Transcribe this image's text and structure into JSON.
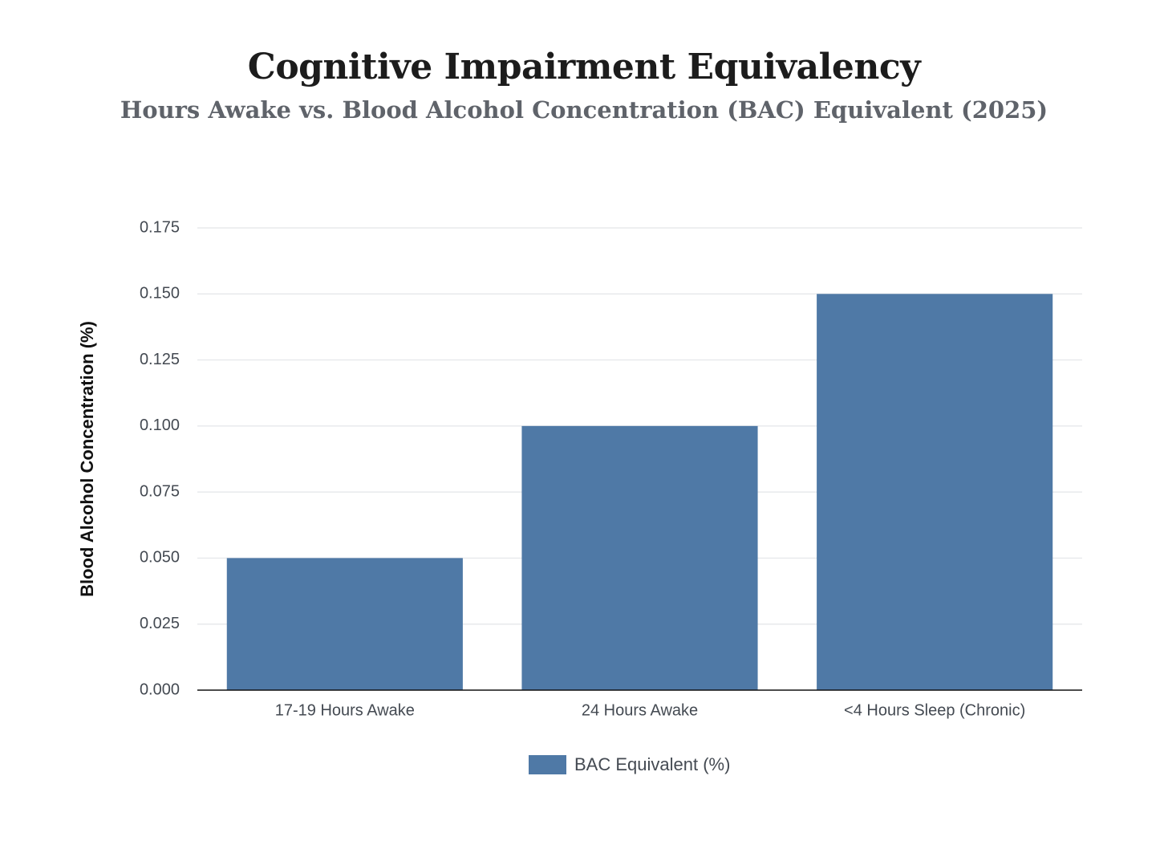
{
  "chart_data": {
    "type": "bar",
    "title": "Cognitive Impairment Equivalency",
    "subtitle": "Hours Awake vs. Blood Alcohol Concentration (BAC) Equivalent (2025)",
    "xlabel": "",
    "ylabel": "Blood Alcohol Concentration (%)",
    "ylim": [
      0,
      0.175
    ],
    "yticks": [
      "0.000",
      "0.025",
      "0.050",
      "0.075",
      "0.100",
      "0.125",
      "0.150",
      "0.175"
    ],
    "categories": [
      "17-19 Hours Awake",
      "24 Hours Awake",
      "<4 Hours Sleep (Chronic)"
    ],
    "series": [
      {
        "name": "BAC Equivalent (%)",
        "values": [
          0.05,
          0.1,
          0.15
        ],
        "color": "#4f79a6"
      }
    ],
    "grid": true,
    "legend_position": "bottom-center"
  }
}
